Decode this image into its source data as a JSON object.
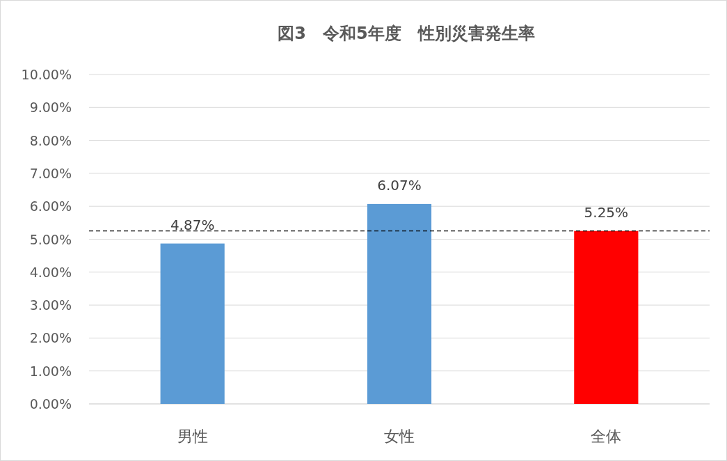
{
  "chart_data": {
    "type": "bar",
    "title": "図3　令和5年度　性別災害発生率",
    "categories": [
      "男性",
      "女性",
      "全体"
    ],
    "values": [
      4.87,
      6.07,
      5.25
    ],
    "colors": [
      "#5b9bd5",
      "#5b9bd5",
      "#ff0000"
    ],
    "value_labels": [
      "4.87%",
      "6.07%",
      "5.25%"
    ],
    "ylim": [
      0,
      10
    ],
    "yticks": [
      {
        "value": 0,
        "label": "0.00%"
      },
      {
        "value": 1,
        "label": "1.00%"
      },
      {
        "value": 2,
        "label": "2.00%"
      },
      {
        "value": 3,
        "label": "3.00%"
      },
      {
        "value": 4,
        "label": "4.00%"
      },
      {
        "value": 5,
        "label": "5.00%"
      },
      {
        "value": 6,
        "label": "6.00%"
      },
      {
        "value": 7,
        "label": "7.00%"
      },
      {
        "value": 8,
        "label": "8.00%"
      },
      {
        "value": 9,
        "label": "9.00%"
      },
      {
        "value": 10,
        "label": "10.00%"
      }
    ],
    "grid": "y",
    "ref_lines": [
      {
        "axis": "y",
        "value": 5.25,
        "color": "#000000",
        "line_style": "dashed"
      }
    ]
  }
}
